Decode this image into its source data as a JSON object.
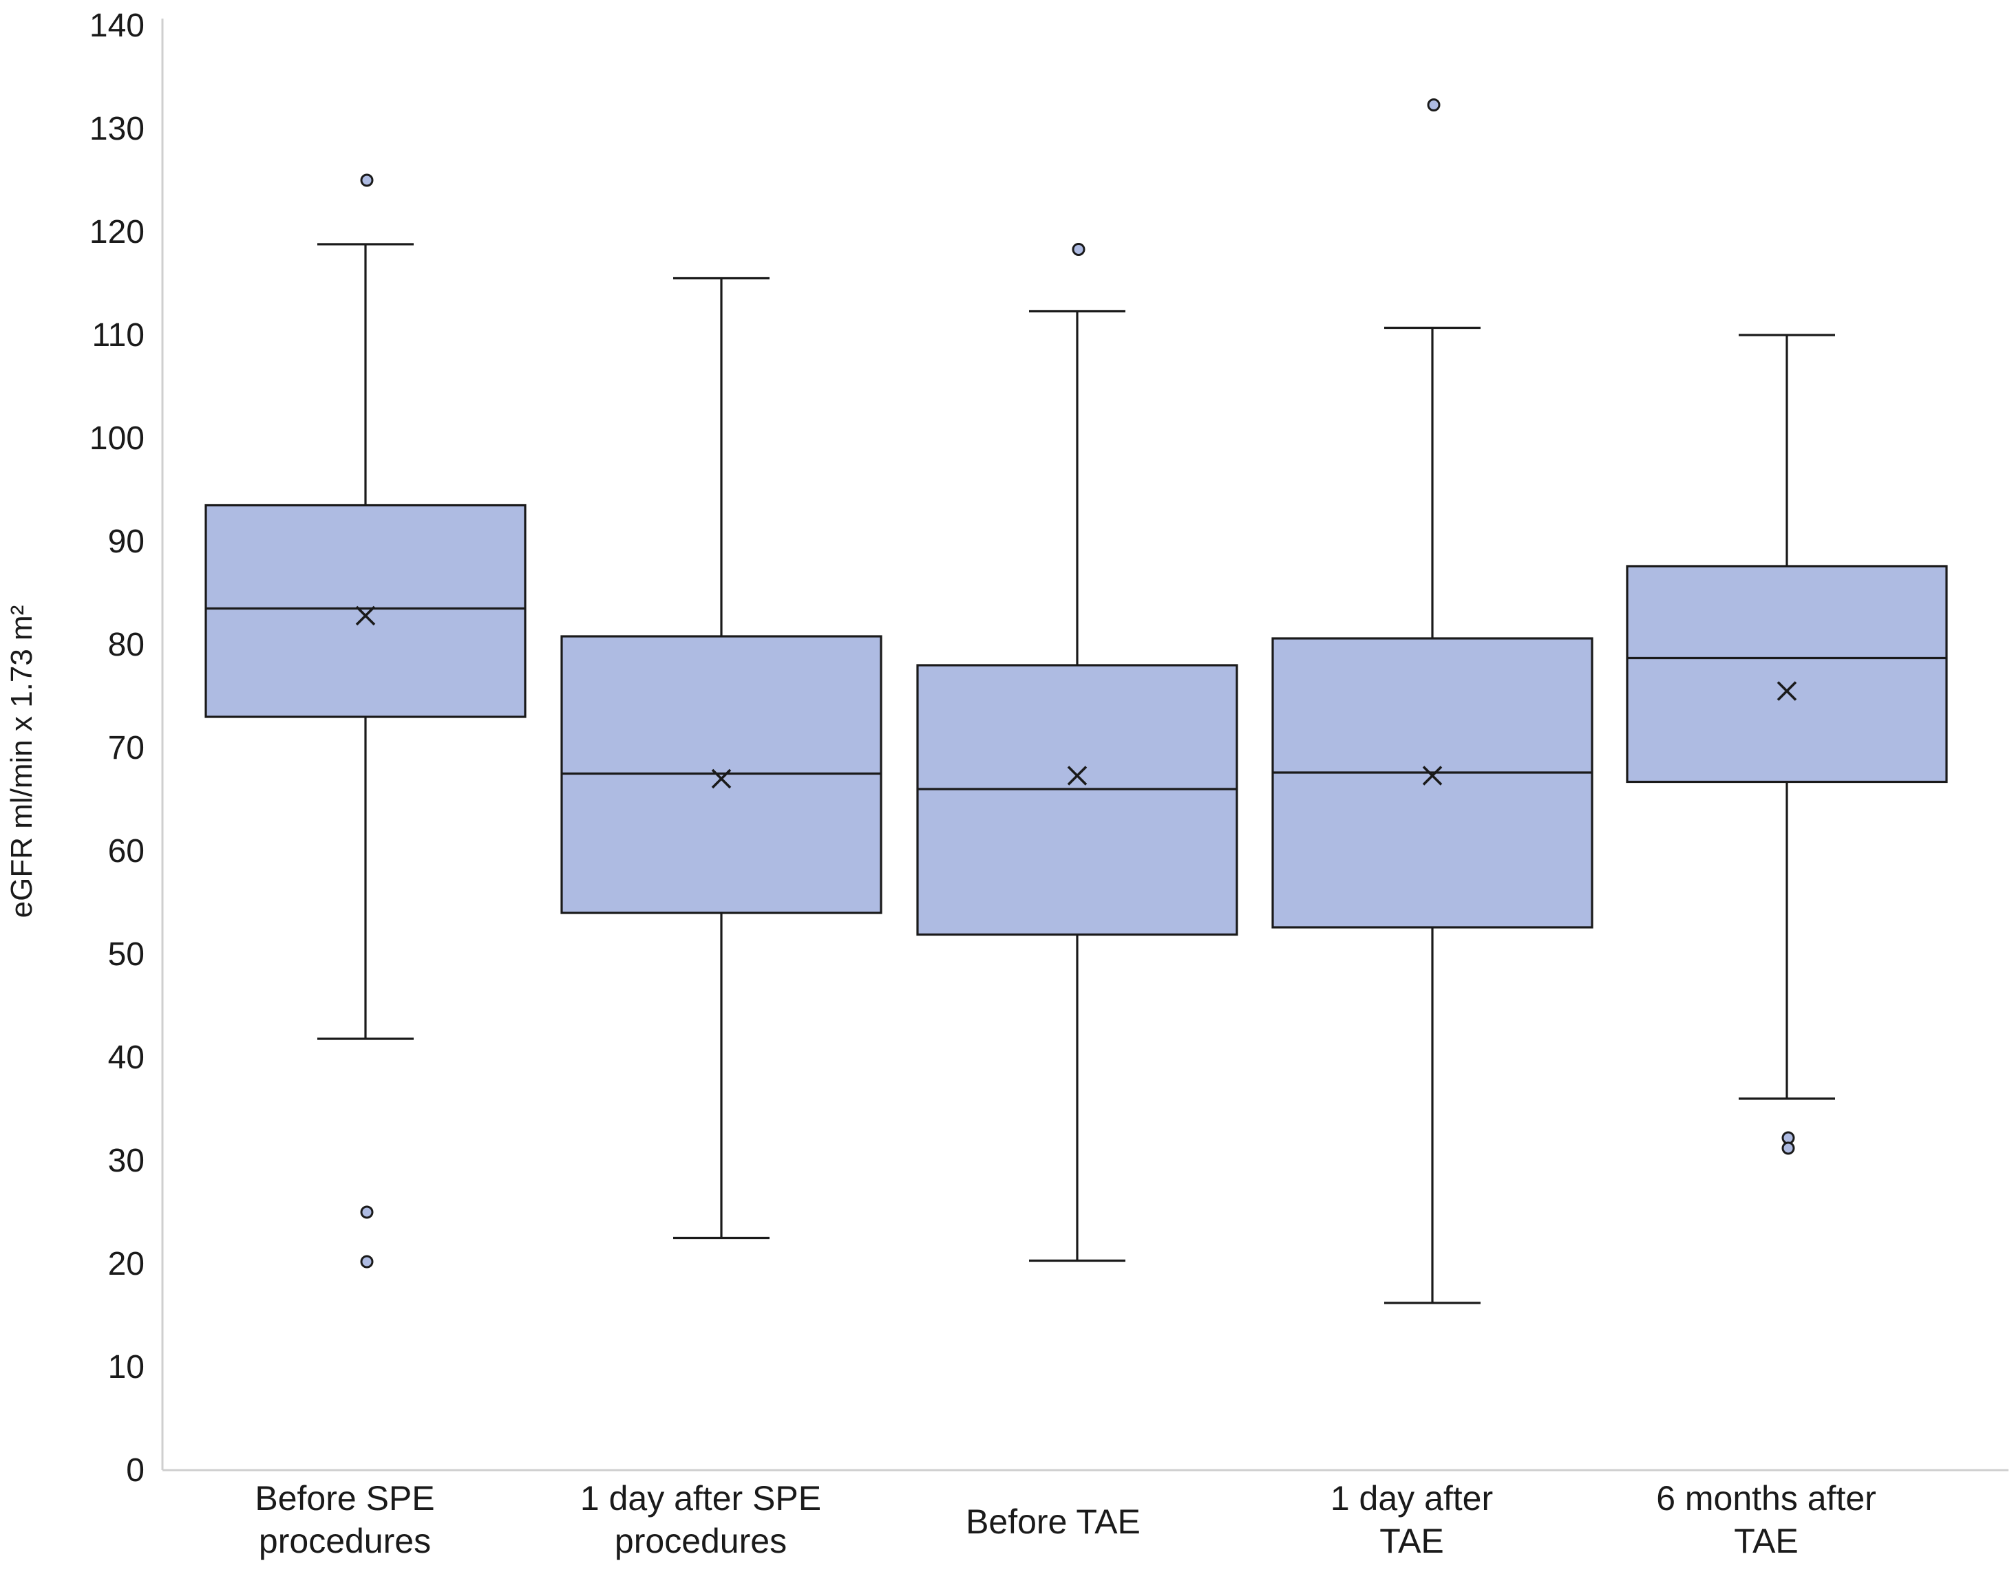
{
  "chart_data": {
    "type": "box",
    "ylabel": "eGFR ml/min x 1.73 m²",
    "ylim": [
      0,
      140
    ],
    "yticks": [
      0,
      10,
      20,
      30,
      40,
      50,
      60,
      70,
      80,
      90,
      100,
      110,
      120,
      130,
      140
    ],
    "grid": false,
    "box_fill": "#aebbe2",
    "box_stroke": "#1a1a1a",
    "outlier_fill": "#aebbe2",
    "categories": [
      {
        "label_lines": [
          "Before SPE",
          "procedures"
        ]
      },
      {
        "label_lines": [
          "1 day after SPE",
          "procedures"
        ]
      },
      {
        "label_lines": [
          "Before TAE"
        ]
      },
      {
        "label_lines": [
          "1 day after",
          "TAE"
        ]
      },
      {
        "label_lines": [
          "6 months after",
          "TAE"
        ]
      }
    ],
    "boxes": [
      {
        "whisker_low": 41.8,
        "q1": 73.0,
        "median": 83.5,
        "q3": 93.5,
        "whisker_high": 118.8,
        "mean": 82.8,
        "outliers": [
          125.0,
          25.0,
          20.2
        ]
      },
      {
        "whisker_low": 22.5,
        "q1": 54.0,
        "median": 67.5,
        "q3": 80.8,
        "whisker_high": 115.5,
        "mean": 67.0,
        "outliers": []
      },
      {
        "whisker_low": 20.3,
        "q1": 51.9,
        "median": 66.0,
        "q3": 78.0,
        "whisker_high": 112.3,
        "mean": 67.3,
        "outliers": [
          118.3
        ]
      },
      {
        "whisker_low": 16.2,
        "q1": 52.6,
        "median": 67.6,
        "q3": 80.6,
        "whisker_high": 110.7,
        "mean": 67.3,
        "outliers": [
          132.3
        ]
      },
      {
        "whisker_low": 36.0,
        "q1": 66.7,
        "median": 78.7,
        "q3": 87.6,
        "whisker_high": 110.0,
        "mean": 75.5,
        "outliers": [
          32.2,
          31.2
        ]
      }
    ]
  }
}
